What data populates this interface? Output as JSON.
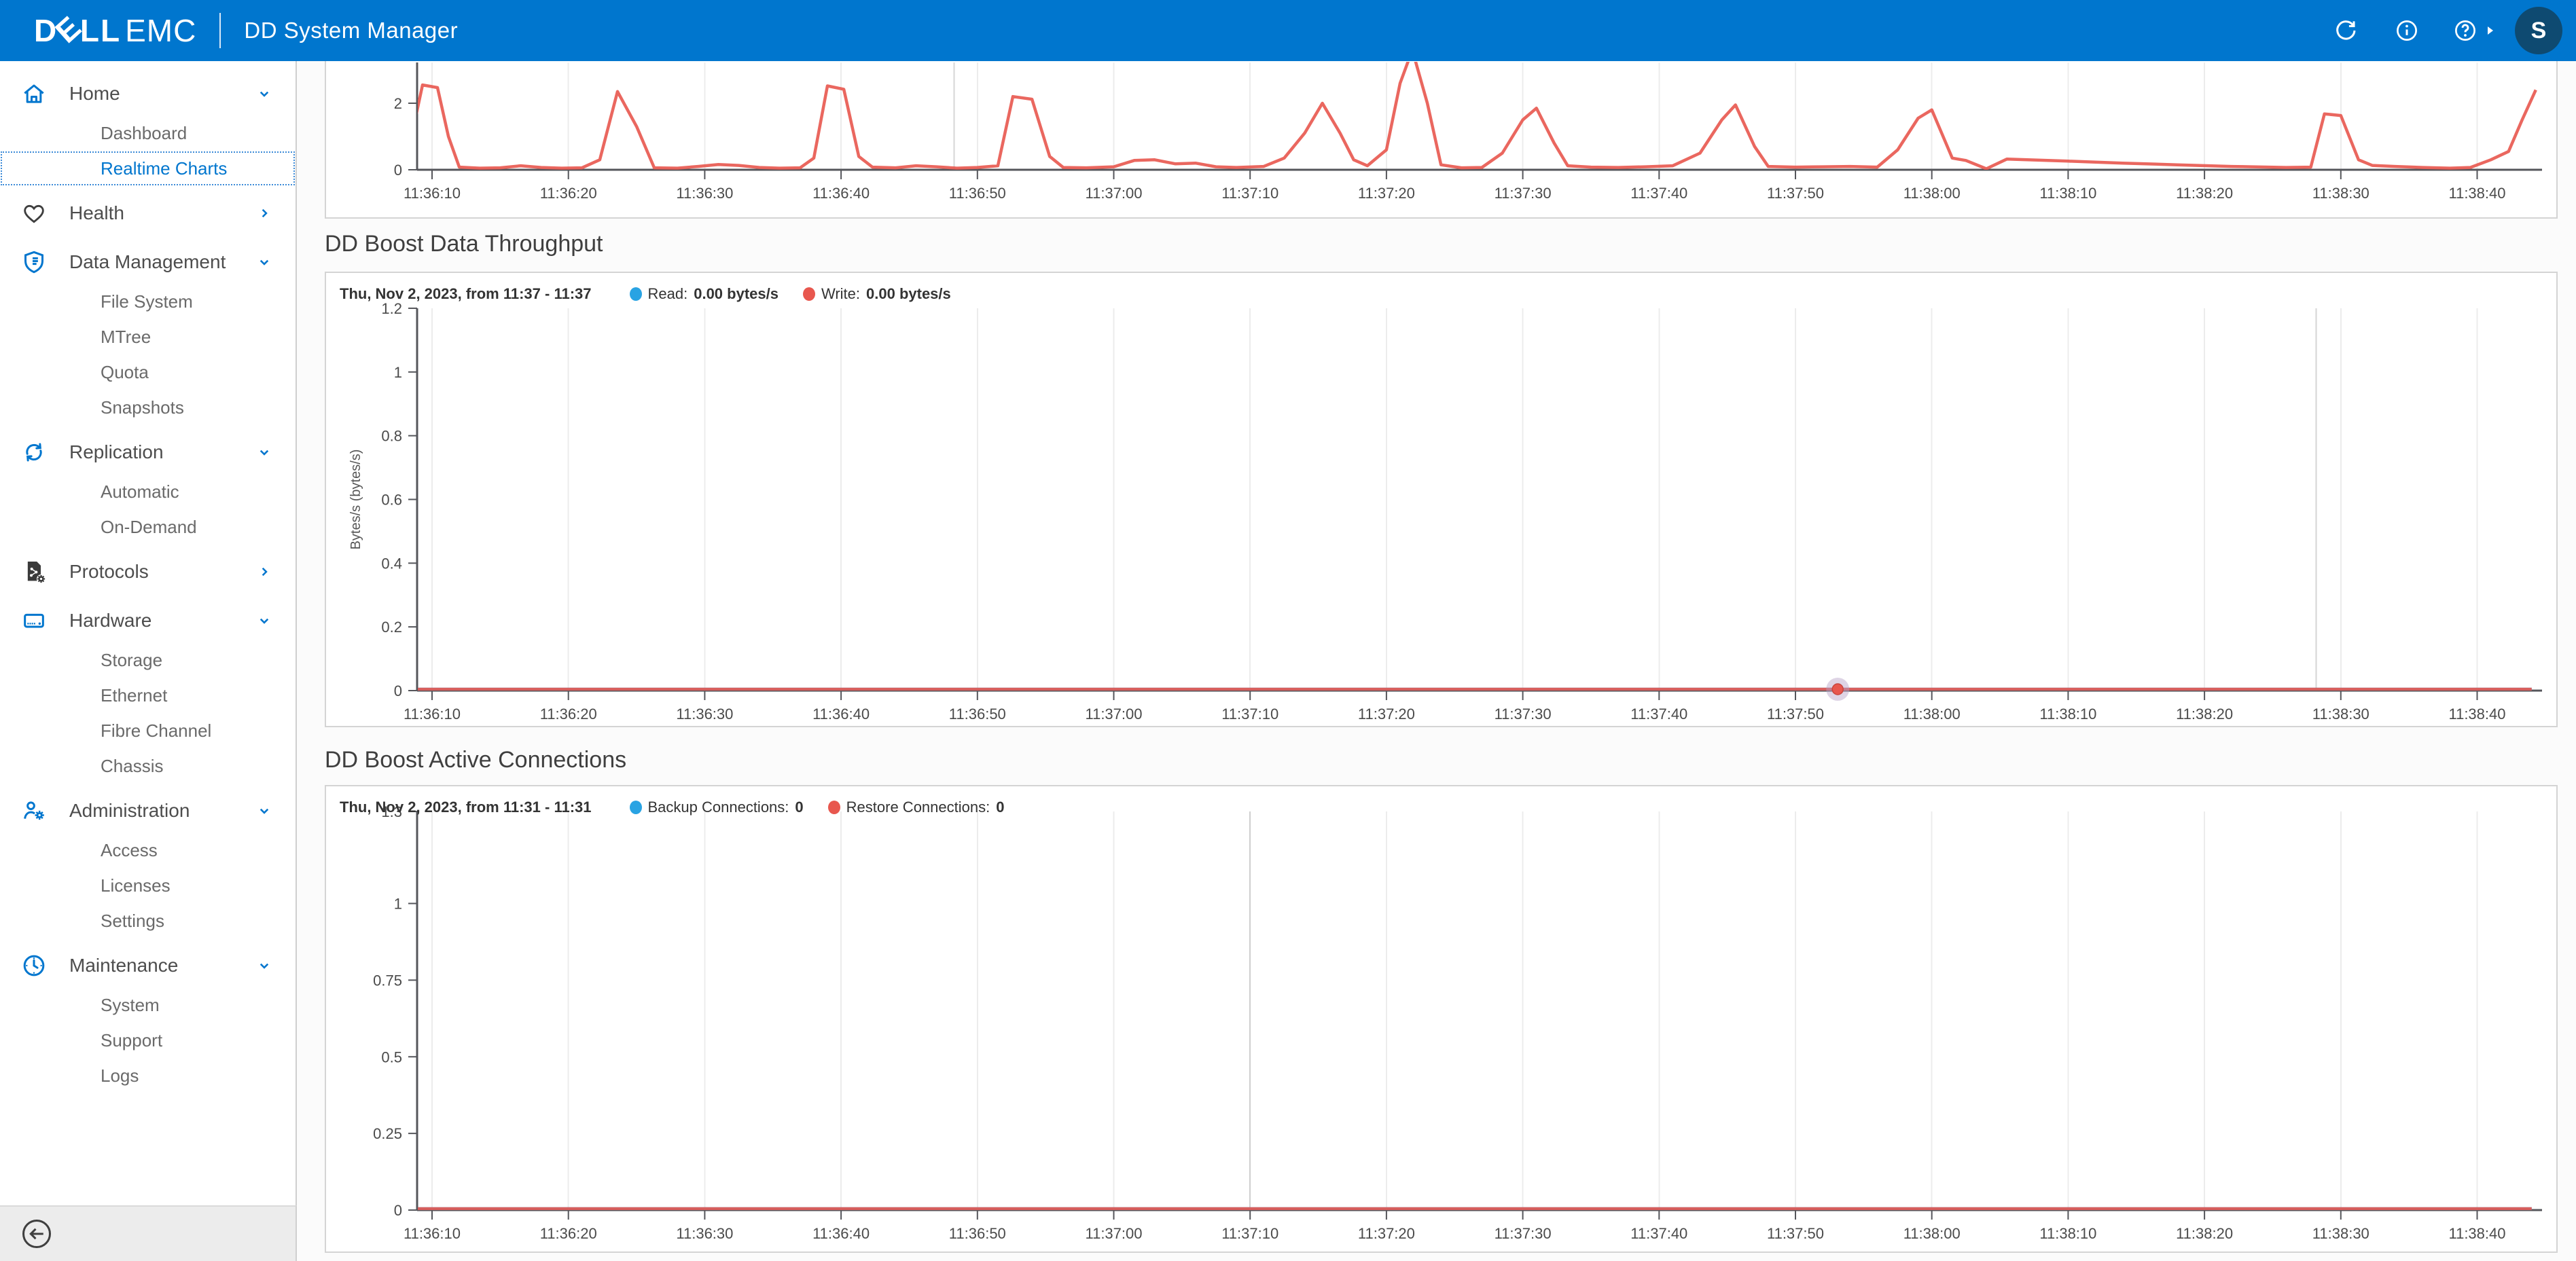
{
  "header": {
    "logo": {
      "d": "D",
      "e": "E",
      "ll": "LL",
      "emc": "EMC"
    },
    "title": "DD System Manager",
    "avatar_initial": "S",
    "icons": [
      "refresh-icon",
      "info-icon",
      "help-icon",
      "caret-right-icon",
      "avatar"
    ]
  },
  "sidebar": {
    "items": [
      {
        "label": "Home",
        "icon": "home",
        "level": 0,
        "chevron": "down"
      },
      {
        "label": "Dashboard",
        "level": 1
      },
      {
        "label": "Realtime Charts",
        "level": 1,
        "active": true
      },
      {
        "label": "Health",
        "icon": "heart",
        "level": 0,
        "chevron": "right"
      },
      {
        "label": "Data Management",
        "icon": "shield",
        "level": 0,
        "chevron": "down"
      },
      {
        "label": "File System",
        "level": 1
      },
      {
        "label": "MTree",
        "level": 1
      },
      {
        "label": "Quota",
        "level": 1
      },
      {
        "label": "Snapshots",
        "level": 1
      },
      {
        "label": "Replication",
        "icon": "sync",
        "level": 0,
        "chevron": "down"
      },
      {
        "label": "Automatic",
        "level": 1
      },
      {
        "label": "On-Demand",
        "level": 1
      },
      {
        "label": "Protocols",
        "icon": "protocols",
        "level": 0,
        "chevron": "right"
      },
      {
        "label": "Hardware",
        "icon": "server",
        "level": 0,
        "chevron": "down"
      },
      {
        "label": "Storage",
        "level": 1
      },
      {
        "label": "Ethernet",
        "level": 1
      },
      {
        "label": "Fibre Channel",
        "level": 1
      },
      {
        "label": "Chassis",
        "level": 1
      },
      {
        "label": "Administration",
        "icon": "user-gear",
        "level": 0,
        "chevron": "down"
      },
      {
        "label": "Access",
        "level": 1
      },
      {
        "label": "Licenses",
        "level": 1
      },
      {
        "label": "Settings",
        "level": 1
      },
      {
        "label": "Maintenance",
        "icon": "clock",
        "level": 0,
        "chevron": "down"
      },
      {
        "label": "System",
        "level": 1
      },
      {
        "label": "Support",
        "level": 1
      },
      {
        "label": "Logs",
        "level": 1
      }
    ]
  },
  "sections": {
    "throughput": {
      "title": "DD Boost Data Throughput",
      "legend_date": "Thu, Nov 2, 2023, from 11:37 - 11:37",
      "legend": [
        {
          "label": "Read:",
          "value": "0.00 bytes/s",
          "color": "#29a3e3"
        },
        {
          "label": "Write:",
          "value": "0.00 bytes/s",
          "color": "#e8574e"
        }
      ]
    },
    "connections": {
      "title": "DD Boost Active Connections",
      "legend_date": "Thu, Nov 2, 2023, from 11:31 - 11:31",
      "legend": [
        {
          "label": "Backup Connections:",
          "value": "0",
          "color": "#29a3e3"
        },
        {
          "label": "Restore Connections:",
          "value": "0",
          "color": "#e8574e"
        }
      ]
    }
  },
  "colors": {
    "header_blue": "#0076ce",
    "avatar_navy": "#0e4a71",
    "series_red": "#e8574e",
    "series_blue": "#29a3e3",
    "axis": "#55565b",
    "gridline": "#ececec",
    "gridline_dark": "#d6d6d6",
    "marker_halo": "#b5a0c5"
  },
  "chart_data": [
    {
      "type": "line",
      "title": "",
      "xlabel": "",
      "ylabel": "",
      "x_ticks": [
        "11:36:10",
        "11:36:20",
        "11:36:30",
        "11:36:40",
        "11:36:50",
        "11:37:00",
        "11:37:10",
        "11:37:20",
        "11:37:30",
        "11:37:40",
        "11:37:50",
        "11:38:00",
        "11:38:10",
        "11:38:20",
        "11:38:30",
        "11:38:40"
      ],
      "x_tick_seconds": [
        10,
        20,
        30,
        40,
        50,
        60,
        70,
        80,
        90,
        100,
        110,
        120,
        130,
        140,
        150,
        160
      ],
      "yticks": [
        {
          "v": 2,
          "label": "2"
        },
        {
          "v": 0,
          "label": "0"
        }
      ],
      "ylim": [
        0,
        3.3
      ],
      "grid": "vertical",
      "extra_gridline_seconds": [
        48.3
      ],
      "dark_tick_seconds": [],
      "series": [
        {
          "name": "Write",
          "color": "#e8574e",
          "points": [
            [
              8,
              0.07
            ],
            [
              8.6,
              1.2
            ],
            [
              9.3,
              2.55
            ],
            [
              10.4,
              2.47
            ],
            [
              11.2,
              1
            ],
            [
              12,
              0.08
            ],
            [
              13.5,
              0.05
            ],
            [
              15,
              0.06
            ],
            [
              16.5,
              0.12
            ],
            [
              18,
              0.07
            ],
            [
              19.5,
              0.05
            ],
            [
              21,
              0.06
            ],
            [
              22.3,
              0.3
            ],
            [
              23.6,
              2.35
            ],
            [
              25,
              1.3
            ],
            [
              26.3,
              0.06
            ],
            [
              28,
              0.05
            ],
            [
              29.5,
              0.1
            ],
            [
              31,
              0.16
            ],
            [
              32.5,
              0.13
            ],
            [
              34,
              0.07
            ],
            [
              35.5,
              0.05
            ],
            [
              37,
              0.06
            ],
            [
              38,
              0.35
            ],
            [
              39,
              2.52
            ],
            [
              40.2,
              2.42
            ],
            [
              41.3,
              0.4
            ],
            [
              42.3,
              0.08
            ],
            [
              44,
              0.06
            ],
            [
              45.5,
              0.12
            ],
            [
              47,
              0.09
            ],
            [
              48.5,
              0.05
            ],
            [
              50,
              0.07
            ],
            [
              51.5,
              0.12
            ],
            [
              52.6,
              2.2
            ],
            [
              54,
              2.12
            ],
            [
              55.3,
              0.4
            ],
            [
              56.3,
              0.07
            ],
            [
              58,
              0.06
            ],
            [
              60,
              0.09
            ],
            [
              61.5,
              0.28
            ],
            [
              63,
              0.3
            ],
            [
              64.5,
              0.18
            ],
            [
              66,
              0.2
            ],
            [
              67.5,
              0.09
            ],
            [
              69,
              0.07
            ],
            [
              71,
              0.1
            ],
            [
              72.5,
              0.35
            ],
            [
              74,
              1.1
            ],
            [
              75.3,
              2
            ],
            [
              76.6,
              1.1
            ],
            [
              77.6,
              0.3
            ],
            [
              78.6,
              0.12
            ],
            [
              80,
              0.6
            ],
            [
              81,
              2.6
            ],
            [
              81.9,
              3.6
            ],
            [
              83,
              2
            ],
            [
              84,
              0.15
            ],
            [
              85.5,
              0.06
            ],
            [
              87,
              0.07
            ],
            [
              88.5,
              0.5
            ],
            [
              90,
              1.5
            ],
            [
              91,
              1.85
            ],
            [
              92.3,
              0.8
            ],
            [
              93.3,
              0.12
            ],
            [
              95,
              0.08
            ],
            [
              97,
              0.07
            ],
            [
              99,
              0.09
            ],
            [
              101,
              0.12
            ],
            [
              103,
              0.5
            ],
            [
              104.6,
              1.5
            ],
            [
              105.6,
              1.95
            ],
            [
              107,
              0.7
            ],
            [
              108,
              0.1
            ],
            [
              110,
              0.08
            ],
            [
              112,
              0.09
            ],
            [
              114,
              0.1
            ],
            [
              116,
              0.08
            ],
            [
              117.5,
              0.6
            ],
            [
              119,
              1.55
            ],
            [
              120,
              1.8
            ],
            [
              121.5,
              0.35
            ],
            [
              122.5,
              0.28
            ],
            [
              124,
              0.03
            ],
            [
              125.5,
              0.32
            ],
            [
              127,
              0.3
            ],
            [
              130,
              0.26
            ],
            [
              134,
              0.2
            ],
            [
              138,
              0.15
            ],
            [
              142,
              0.1
            ],
            [
              146,
              0.07
            ],
            [
              147.8,
              0.08
            ],
            [
              148.8,
              1.68
            ],
            [
              150,
              1.63
            ],
            [
              151.3,
              0.3
            ],
            [
              152.3,
              0.13
            ],
            [
              154,
              0.1
            ],
            [
              156,
              0.07
            ],
            [
              158,
              0.05
            ],
            [
              159.5,
              0.07
            ],
            [
              161,
              0.3
            ],
            [
              162.3,
              0.55
            ],
            [
              163.3,
              1.5
            ],
            [
              164.3,
              2.4
            ]
          ]
        }
      ]
    },
    {
      "type": "line",
      "title": "DD Boost Data Throughput",
      "xlabel": "",
      "ylabel": "Bytes/s (bytes/s)",
      "x_ticks": [
        "11:36:10",
        "11:36:20",
        "11:36:30",
        "11:36:40",
        "11:36:50",
        "11:37:00",
        "11:37:10",
        "11:37:20",
        "11:37:30",
        "11:37:40",
        "11:37:50",
        "11:38:00",
        "11:38:10",
        "11:38:20",
        "11:38:30",
        "11:38:40"
      ],
      "x_tick_seconds": [
        10,
        20,
        30,
        40,
        50,
        60,
        70,
        80,
        90,
        100,
        110,
        120,
        130,
        140,
        150,
        160
      ],
      "yticks": [
        {
          "v": 1.2,
          "label": "1.2"
        },
        {
          "v": 1,
          "label": "1"
        },
        {
          "v": 0.8,
          "label": "0.8"
        },
        {
          "v": 0.6,
          "label": "0.6"
        },
        {
          "v": 0.4,
          "label": "0.4"
        },
        {
          "v": 0.2,
          "label": "0.2"
        },
        {
          "v": 0,
          "label": "0"
        }
      ],
      "ylim": [
        0,
        1.2
      ],
      "grid": "vertical",
      "extra_gridline_seconds": [
        148.2
      ],
      "dark_tick_seconds": [],
      "marker": {
        "series": "Write",
        "t": 113.1,
        "v": 0
      },
      "series": [
        {
          "name": "Read",
          "color": "#29a3e3",
          "points": [
            [
              8.9,
              0
            ],
            [
              164,
              0
            ]
          ]
        },
        {
          "name": "Write",
          "color": "#e8574e",
          "points": [
            [
              8.9,
              0
            ],
            [
              164,
              0
            ]
          ]
        }
      ]
    },
    {
      "type": "line",
      "title": "DD Boost Active Connections",
      "xlabel": "",
      "ylabel": "",
      "x_ticks": [
        "11:36:10",
        "11:36:20",
        "11:36:30",
        "11:36:40",
        "11:36:50",
        "11:37:00",
        "11:37:10",
        "11:37:20",
        "11:37:30",
        "11:37:40",
        "11:37:50",
        "11:38:00",
        "11:38:10",
        "11:38:20",
        "11:38:30",
        "11:38:40"
      ],
      "x_tick_seconds": [
        10,
        20,
        30,
        40,
        50,
        60,
        70,
        80,
        90,
        100,
        110,
        120,
        130,
        140,
        150,
        160
      ],
      "yticks": [
        {
          "v": 1.3,
          "label": "1.3"
        },
        {
          "v": 1,
          "label": "1"
        },
        {
          "v": 0.75,
          "label": "0.75"
        },
        {
          "v": 0.5,
          "label": "0.5"
        },
        {
          "v": 0.25,
          "label": "0.25"
        },
        {
          "v": 0,
          "label": "0"
        }
      ],
      "ylim": [
        0,
        1.3
      ],
      "grid": "vertical",
      "extra_gridline_seconds": [],
      "dark_tick_seconds": [
        70
      ],
      "series": [
        {
          "name": "Backup Connections",
          "color": "#29a3e3",
          "points": [
            [
              8.9,
              0
            ],
            [
              164,
              0
            ]
          ]
        },
        {
          "name": "Restore Connections",
          "color": "#e8574e",
          "points": [
            [
              8.9,
              0
            ],
            [
              164,
              0
            ]
          ]
        }
      ]
    }
  ]
}
